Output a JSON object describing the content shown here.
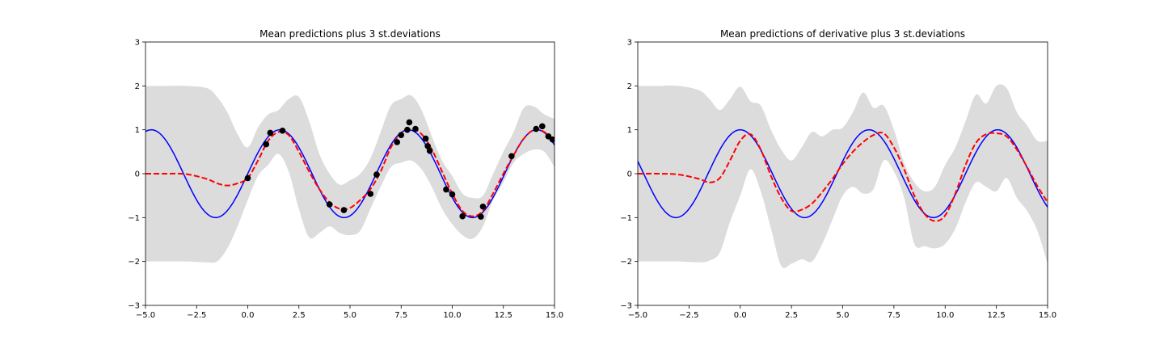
{
  "chart_data": [
    {
      "type": "line",
      "title": "Mean predictions plus 3 st.deviations",
      "xlabel": "",
      "ylabel": "",
      "xlim": [
        -5.0,
        15.0
      ],
      "ylim": [
        -3,
        3
      ],
      "xticks": [
        -5.0,
        -2.5,
        0.0,
        2.5,
        5.0,
        7.5,
        10.0,
        12.5,
        15.0
      ],
      "xtick_labels": [
        "−5.0",
        "−2.5",
        "0.0",
        "2.5",
        "5.0",
        "7.5",
        "10.0",
        "12.5",
        "15.0"
      ],
      "yticks": [
        -3,
        -2,
        -1,
        0,
        1,
        2,
        3
      ],
      "ytick_labels": [
        "−3",
        "−2",
        "−1",
        "0",
        "1",
        "2",
        "3"
      ],
      "grid": false,
      "colors": {
        "true": "#0000ff",
        "mean": "#ff0000",
        "band": "#dcdcdc",
        "points": "#000000"
      },
      "series": [
        {
          "role": "true-function",
          "function": "sin",
          "style": "solid"
        },
        {
          "role": "predicted-mean",
          "style": "dashed",
          "x": [
            -5,
            -4,
            -3,
            -2,
            -1.5,
            -1,
            -0.5,
            0,
            0.5,
            1,
            1.5,
            2,
            2.5,
            3,
            3.5,
            4,
            4.5,
            5,
            5.5,
            6,
            6.5,
            7,
            7.5,
            8,
            8.5,
            9,
            9.5,
            10,
            10.5,
            11,
            11.5,
            12,
            12.5,
            13,
            13.5,
            14,
            14.5,
            15
          ],
          "y": [
            0,
            0,
            -0.01,
            -0.12,
            -0.22,
            -0.27,
            -0.22,
            -0.1,
            0.3,
            0.75,
            0.95,
            0.88,
            0.5,
            0.05,
            -0.35,
            -0.65,
            -0.8,
            -0.78,
            -0.6,
            -0.35,
            0.05,
            0.6,
            0.92,
            1.02,
            0.9,
            0.55,
            0.05,
            -0.45,
            -0.85,
            -0.97,
            -0.85,
            -0.45,
            0.0,
            0.42,
            0.8,
            1.0,
            0.95,
            0.72
          ]
        },
        {
          "role": "confidence-band",
          "x": [
            -5,
            -4,
            -3,
            -2,
            -1.5,
            -1,
            -0.5,
            0,
            0.5,
            1,
            1.5,
            2,
            2.5,
            3,
            3.5,
            4,
            4.5,
            5,
            5.5,
            6,
            6.5,
            7,
            7.5,
            8,
            8.5,
            9,
            9.5,
            10,
            10.5,
            11,
            11.5,
            12,
            12.5,
            13,
            13.5,
            14,
            14.5,
            15
          ],
          "upper": [
            2.0,
            2.0,
            2.0,
            1.95,
            1.75,
            1.4,
            0.9,
            0.6,
            1.05,
            1.35,
            1.45,
            1.7,
            1.75,
            1.2,
            0.45,
            0.0,
            -0.25,
            -0.15,
            -0.0,
            0.35,
            0.95,
            1.55,
            1.7,
            1.78,
            1.45,
            0.85,
            0.3,
            -0.05,
            -0.45,
            -0.55,
            -0.5,
            0.0,
            0.5,
            0.95,
            1.5,
            1.53,
            1.35,
            1.25
          ],
          "lower": [
            -2.0,
            -2.0,
            -2.0,
            -2.02,
            -2.0,
            -1.7,
            -1.2,
            -0.6,
            -0.05,
            0.2,
            0.45,
            0.05,
            -0.8,
            -1.45,
            -1.35,
            -1.2,
            -1.35,
            -1.4,
            -1.3,
            -0.8,
            -0.3,
            0.15,
            0.25,
            0.3,
            0.1,
            -0.3,
            -0.8,
            -1.15,
            -1.4,
            -1.48,
            -1.2,
            -0.6,
            -0.2,
            0.25,
            0.45,
            0.55,
            0.5,
            0.15
          ]
        },
        {
          "role": "observations",
          "style": "points",
          "x": [
            0.0,
            0.9,
            1.1,
            1.7,
            4.0,
            4.7,
            6.0,
            6.3,
            7.3,
            7.5,
            7.8,
            7.9,
            8.2,
            8.7,
            8.8,
            8.9,
            9.7,
            10.0,
            10.5,
            11.4,
            11.5,
            12.9,
            14.1,
            14.4,
            14.7,
            14.9
          ],
          "y": [
            -0.1,
            0.67,
            0.93,
            0.98,
            -0.7,
            -0.83,
            -0.46,
            -0.02,
            0.72,
            0.88,
            1.0,
            1.17,
            1.02,
            0.8,
            0.63,
            0.52,
            -0.36,
            -0.47,
            -0.97,
            -0.98,
            -0.75,
            0.4,
            1.02,
            1.08,
            0.85,
            0.78
          ]
        }
      ]
    },
    {
      "type": "line",
      "title": "Mean predictions of derivative plus 3 st.deviations",
      "xlabel": "",
      "ylabel": "",
      "xlim": [
        -5.0,
        15.0
      ],
      "ylim": [
        -3,
        3
      ],
      "xticks": [
        -5.0,
        -2.5,
        0.0,
        2.5,
        5.0,
        7.5,
        10.0,
        12.5,
        15.0
      ],
      "xtick_labels": [
        "−5.0",
        "−2.5",
        "0.0",
        "2.5",
        "5.0",
        "7.5",
        "10.0",
        "12.5",
        "15.0"
      ],
      "yticks": [
        -3,
        -2,
        -1,
        0,
        1,
        2,
        3
      ],
      "ytick_labels": [
        "−3",
        "−2",
        "−1",
        "0",
        "1",
        "2",
        "3"
      ],
      "grid": false,
      "colors": {
        "true": "#0000ff",
        "mean": "#ff0000",
        "band": "#dcdcdc"
      },
      "series": [
        {
          "role": "true-function",
          "function": "cos",
          "style": "solid"
        },
        {
          "role": "predicted-mean",
          "style": "dashed",
          "x": [
            -5,
            -4,
            -3,
            -2,
            -1.5,
            -1,
            -0.5,
            0,
            0.5,
            1,
            1.5,
            2,
            2.5,
            3,
            3.5,
            4,
            4.5,
            5,
            5.5,
            6,
            6.5,
            7,
            7.5,
            8,
            8.5,
            9,
            9.5,
            10,
            10.5,
            11,
            11.5,
            12,
            12.5,
            13,
            13.5,
            14,
            14.5,
            15
          ],
          "y": [
            0,
            0,
            -0.02,
            -0.12,
            -0.2,
            -0.1,
            0.3,
            0.75,
            0.9,
            0.55,
            -0.05,
            -0.55,
            -0.85,
            -0.82,
            -0.68,
            -0.42,
            -0.12,
            0.22,
            0.5,
            0.72,
            0.88,
            0.92,
            0.6,
            0.1,
            -0.5,
            -0.92,
            -1.08,
            -0.95,
            -0.45,
            0.2,
            0.7,
            0.9,
            0.92,
            0.85,
            0.55,
            0.15,
            -0.28,
            -0.65
          ]
        },
        {
          "role": "confidence-band",
          "x": [
            -5,
            -4,
            -3,
            -2,
            -1.5,
            -1,
            -0.5,
            0,
            0.5,
            1,
            1.5,
            2,
            2.5,
            3,
            3.5,
            4,
            4.5,
            5,
            5.5,
            6,
            6.5,
            7,
            7.5,
            8,
            8.5,
            9,
            9.5,
            10,
            10.5,
            11,
            11.5,
            12,
            12.5,
            13,
            13.5,
            14,
            14.5,
            15
          ],
          "upper": [
            2.0,
            2.0,
            2.0,
            1.9,
            1.7,
            1.45,
            1.7,
            1.98,
            1.65,
            1.55,
            1.0,
            0.55,
            0.3,
            0.6,
            0.95,
            0.85,
            1.0,
            1.05,
            1.4,
            1.85,
            1.5,
            1.55,
            1.0,
            0.25,
            -0.2,
            -0.4,
            -0.3,
            0.2,
            0.6,
            1.2,
            1.8,
            1.6,
            2.0,
            1.95,
            1.4,
            1.1,
            0.75,
            0.75
          ],
          "lower": [
            -2.0,
            -2.0,
            -2.0,
            -2.02,
            -1.98,
            -1.8,
            -1.1,
            -0.5,
            0.1,
            -0.4,
            -1.25,
            -2.1,
            -2.05,
            -1.95,
            -2.0,
            -1.6,
            -1.05,
            -0.5,
            -0.3,
            -0.45,
            -0.35,
            0.3,
            0.05,
            -0.55,
            -1.6,
            -1.65,
            -1.7,
            -1.6,
            -1.25,
            -0.65,
            -0.2,
            -0.3,
            -0.4,
            -0.1,
            -0.55,
            -0.85,
            -1.3,
            -2.05
          ]
        }
      ]
    }
  ]
}
